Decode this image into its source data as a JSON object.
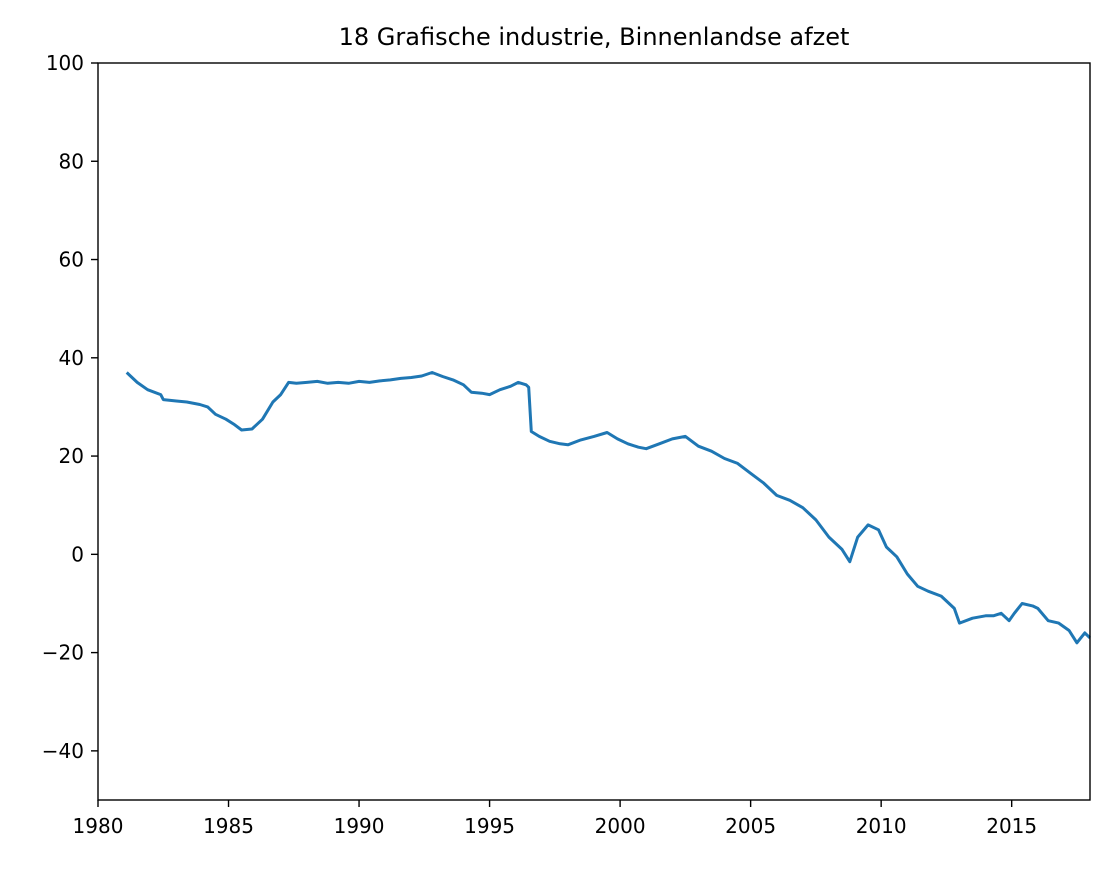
{
  "chart_data": {
    "type": "line",
    "title": "18 Grafische industrie, Binnenlandse afzet",
    "xlabel": "",
    "ylabel": "",
    "xlim": [
      1980,
      2018
    ],
    "ylim": [
      -50,
      100
    ],
    "xticks": [
      1980,
      1985,
      1990,
      1995,
      2000,
      2005,
      2010,
      2015
    ],
    "yticks": [
      -40,
      -20,
      0,
      20,
      40,
      60,
      80,
      100
    ],
    "grid": false,
    "legend": "none",
    "series": [
      {
        "color": "#1f77b4",
        "x": [
          1981.1,
          1981.5,
          1981.9,
          1982.4,
          1982.5,
          1983.0,
          1983.4,
          1983.9,
          1984.2,
          1984.5,
          1984.9,
          1985.2,
          1985.5,
          1985.9,
          1986.3,
          1986.7,
          1987.0,
          1987.3,
          1987.6,
          1988.0,
          1988.4,
          1988.8,
          1989.2,
          1989.6,
          1990.0,
          1990.4,
          1990.8,
          1991.2,
          1991.6,
          1992.0,
          1992.4,
          1992.8,
          1993.2,
          1993.6,
          1994.0,
          1994.3,
          1994.7,
          1995.0,
          1995.4,
          1995.8,
          1996.1,
          1996.4,
          1996.5,
          1996.6,
          1996.9,
          1997.3,
          1997.7,
          1998.0,
          1998.5,
          1999.0,
          1999.5,
          1999.9,
          2000.3,
          2000.7,
          2001.0,
          2001.5,
          2002.0,
          2002.5,
          2003.0,
          2003.5,
          2004.0,
          2004.5,
          2005.0,
          2005.5,
          2006.0,
          2006.5,
          2007.0,
          2007.5,
          2008.0,
          2008.5,
          2008.8,
          2009.1,
          2009.5,
          2009.9,
          2010.2,
          2010.6,
          2011.0,
          2011.4,
          2011.8,
          2012.3,
          2012.8,
          2013.0,
          2013.5,
          2014.0,
          2014.3,
          2014.6,
          2014.9,
          2015.1,
          2015.4,
          2015.8,
          2016.0,
          2016.4,
          2016.8,
          2017.2,
          2017.5,
          2017.8,
          2018.0
        ],
        "values": [
          37,
          35,
          33.5,
          32.5,
          31.5,
          31.2,
          31.0,
          30.5,
          30,
          28.5,
          27.5,
          26.5,
          25.3,
          25.5,
          27.5,
          31,
          32.5,
          35,
          34.8,
          35,
          35.2,
          34.8,
          35,
          34.8,
          35.2,
          35,
          35.3,
          35.5,
          35.8,
          36,
          36.3,
          37,
          36.2,
          35.5,
          34.5,
          33,
          32.8,
          32.5,
          33.5,
          34.2,
          35,
          34.5,
          34,
          25,
          24,
          23,
          22.5,
          22.3,
          23.3,
          24,
          24.8,
          23.5,
          22.5,
          21.8,
          21.5,
          22.5,
          23.5,
          24,
          22,
          21,
          19.5,
          18.5,
          16.5,
          14.5,
          12,
          11,
          9.5,
          7,
          3.5,
          1,
          -1.5,
          3.5,
          6,
          5,
          1.5,
          -0.5,
          -4,
          -6.5,
          -7.5,
          -8.5,
          -11,
          -14,
          -13,
          -12.5,
          -12.5,
          -12,
          -13.5,
          -12,
          -10,
          -10.5,
          -11,
          -13.5,
          -14,
          -15.5,
          -18,
          -16,
          -17
        ]
      }
    ]
  }
}
